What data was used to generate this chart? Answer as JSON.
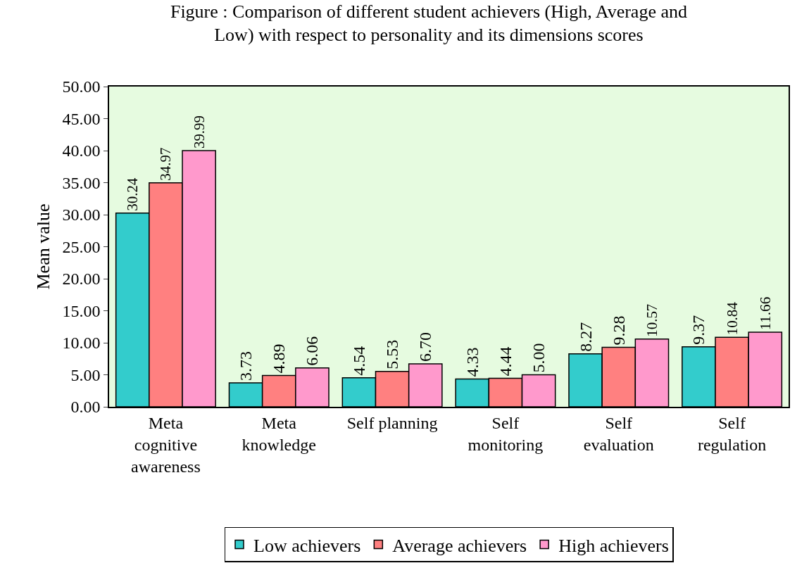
{
  "chart_data": {
    "type": "bar",
    "title": "Figure : Comparison of different student achievers (High, Average and Low) with respect to personality and its dimensions scores",
    "ylabel": "Mean value",
    "categories": [
      "Meta cognitive awareness",
      "Meta knowledge",
      "Self planning",
      "Self monitoring",
      "Self evaluation",
      "Self regulation"
    ],
    "series": [
      {
        "name": "Low achievers",
        "color": "#33cccc",
        "values": [
          30.24,
          3.73,
          4.54,
          4.33,
          8.27,
          9.37
        ],
        "value_labels": [
          "30.24",
          "3.73",
          "4.54",
          "4.33",
          "8.27",
          "9.37"
        ]
      },
      {
        "name": "Average achievers",
        "color": "#ff8080",
        "values": [
          34.97,
          4.89,
          5.53,
          4.44,
          9.28,
          10.84
        ],
        "value_labels": [
          "34.97",
          "4.89",
          "5.53",
          "4.44",
          "9.28",
          "10.84"
        ]
      },
      {
        "name": "High achievers",
        "color": "#ff99cc",
        "values": [
          39.99,
          6.06,
          6.7,
          5.0,
          10.57,
          11.66
        ],
        "value_labels": [
          "39.99",
          "6.06",
          "6.70",
          "5.00",
          "10.57",
          "11.66"
        ]
      }
    ],
    "ylim": [
      0,
      50
    ],
    "yticks": [
      {
        "value": 0,
        "label": "0.00"
      },
      {
        "value": 5,
        "label": "5.00"
      },
      {
        "value": 10,
        "label": "10.00"
      },
      {
        "value": 15,
        "label": "15.00"
      },
      {
        "value": 20,
        "label": "20.00"
      },
      {
        "value": 25,
        "label": "25.00"
      },
      {
        "value": 30,
        "label": "30.00"
      },
      {
        "value": 35,
        "label": "35.00"
      },
      {
        "value": 40,
        "label": "40.00"
      },
      {
        "value": 45,
        "label": "45.00"
      },
      {
        "value": 50,
        "label": "50.00"
      }
    ],
    "grid": false,
    "legend": "bottom"
  }
}
